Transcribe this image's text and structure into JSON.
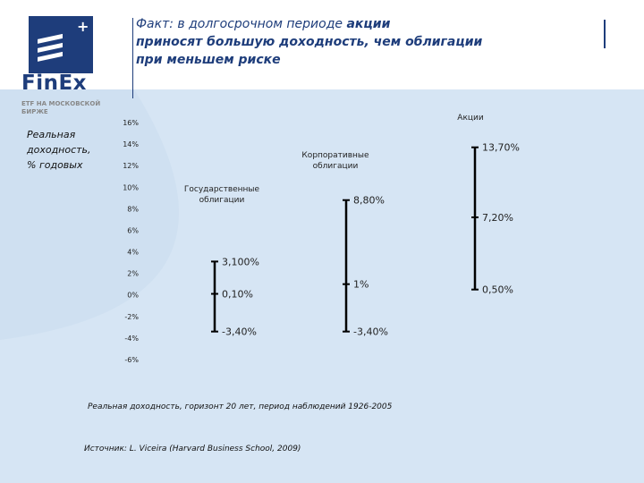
{
  "logo": {
    "brand": "FinEx",
    "sub1": "ETF НА МОСКОВСКОЙ",
    "sub2": "БИРЖЕ",
    "plus": "+"
  },
  "title": {
    "line1_normal": "Факт: в долгосрочном периоде ",
    "line1_bold": "акции",
    "line2": "приносят большую доходность, чем облигации",
    "line3": "при меньшем риске"
  },
  "ylabel": {
    "line1": "Реальная",
    "line2": "доходность,",
    "line3": "% годовых"
  },
  "footnotes": {
    "note1": "Реальная доходность, горизонт 20 лет, период наблюдений 1926-2005",
    "note2": "Источник: L. Viceira (Harvard Business School, 2009)"
  },
  "colors": {
    "brand": "#1e3d7b",
    "background_band": "#cfe0f1",
    "marks": "#000000"
  },
  "chart_data": {
    "type": "range",
    "ylim": [
      -6,
      16
    ],
    "yticks": [
      -6,
      -4,
      -2,
      0,
      2,
      4,
      6,
      8,
      10,
      12,
      14,
      16
    ],
    "ytick_labels": [
      "-6%",
      "-4%",
      "-2%",
      "0%",
      "2%",
      "4%",
      "6%",
      "8%",
      "10%",
      "12%",
      "14%",
      "16%"
    ],
    "series": [
      {
        "name_lines": [
          "Государственные",
          "облигации"
        ],
        "min": -3.4,
        "mid": 0.1,
        "max": 3.1,
        "labels": {
          "min": "-3,40%",
          "mid": "0,10%",
          "max": "3,100%"
        }
      },
      {
        "name_lines": [
          "Корпоративные",
          "облигации"
        ],
        "min": -3.4,
        "mid": 1,
        "max": 8.8,
        "labels": {
          "min": "-3,40%",
          "mid": "1%",
          "max": "8,80%"
        }
      },
      {
        "name_lines": [
          "Акции"
        ],
        "min": 0.5,
        "mid": 7.2,
        "max": 13.7,
        "labels": {
          "min": "0,50%",
          "mid": "7,20%",
          "max": "13,70%"
        }
      }
    ]
  }
}
